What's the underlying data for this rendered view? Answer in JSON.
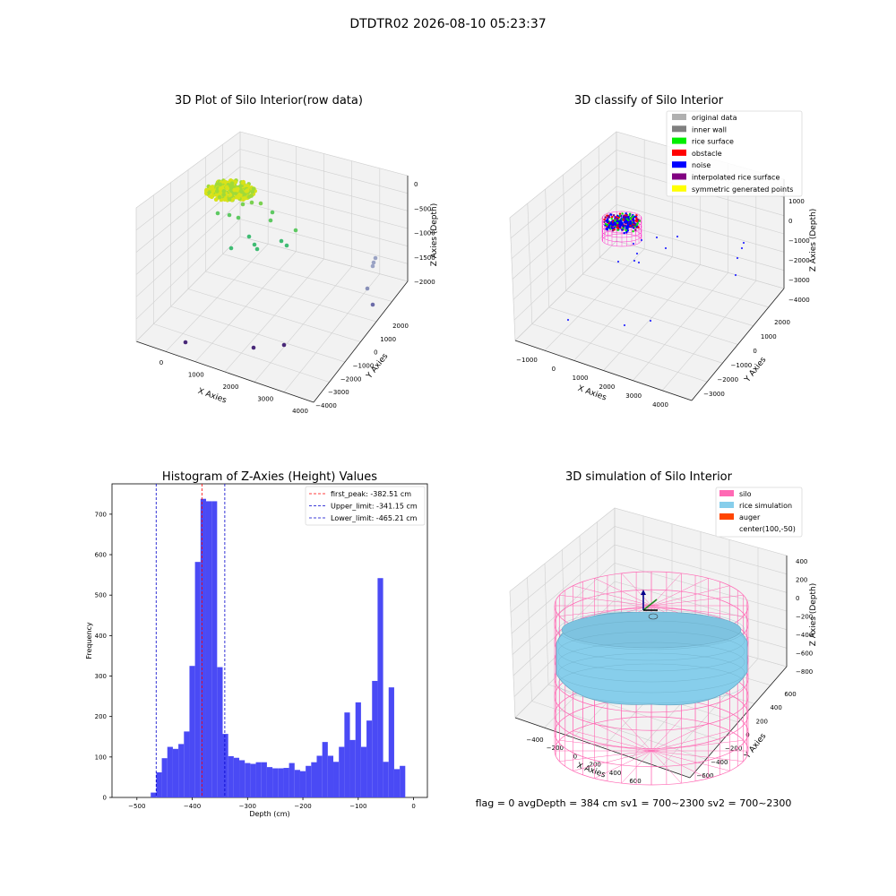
{
  "figure": {
    "suptitle": "DTDTR02 2026-08-10 05:23:37",
    "status_line": "flag = 0     avgDepth = 384 cm  sv1 = 700~2300  sv2 = 700~2300"
  },
  "colors": {
    "axis_pane": "#f2f2f2",
    "grid": "#d0d0d0",
    "hist_bar": "#4a4af5",
    "first_peak": "#ff0000",
    "limit_line": "#0000cc",
    "silo": "#ff69b4",
    "rice_simulation": "#87ceeb",
    "auger": "#ff4500"
  },
  "chart_data": [
    {
      "type": "scatter",
      "title": "3D Plot of Silo Interior(row data)",
      "xlabel": "X Axies",
      "ylabel": "Y Axies",
      "zlabel": "Z Axies (Depth)",
      "x_ticks": [
        "0",
        "1000",
        "2000",
        "3000",
        "4000"
      ],
      "y_ticks": [
        "−4000",
        "−3000",
        "−2000",
        "−1000",
        "0",
        "1000",
        "2000"
      ],
      "z_ticks": [
        "0",
        "−500",
        "−1000",
        "−1500",
        "−2000"
      ],
      "colormap": "viridis"
    },
    {
      "type": "scatter",
      "title": "3D classify of Silo Interior",
      "xlabel": "X Axies",
      "ylabel": "Y Axies",
      "zlabel": "Z Axies (Depth)",
      "x_ticks": [
        "−1000",
        "0",
        "1000",
        "2000",
        "3000",
        "4000"
      ],
      "y_ticks": [
        "−3000",
        "−2000",
        "−1000",
        "0",
        "1000",
        "2000"
      ],
      "z_ticks": [
        "1000",
        "0",
        "−1000",
        "−2000",
        "−3000",
        "−4000"
      ],
      "legend_position": "top-right",
      "legend": [
        {
          "label": "original data",
          "color": "#b0b0b0"
        },
        {
          "label": "inner wall",
          "color": "#808080"
        },
        {
          "label": "rice surface",
          "color": "#00ee00"
        },
        {
          "label": "obstacle",
          "color": "#ff0000"
        },
        {
          "label": "noise",
          "color": "#0000ff"
        },
        {
          "label": "interpolated rice surface",
          "color": "#800080"
        },
        {
          "label": "symmetric generated points",
          "color": "#ffff00"
        }
      ]
    },
    {
      "type": "bar",
      "title": "Histogram of Z-Axies (Height) Values",
      "xlabel": "Depth (cm)",
      "ylabel": "Frequency",
      "xlim": [
        -545,
        25
      ],
      "ylim": [
        0,
        775
      ],
      "x_ticks": [
        -500,
        -400,
        -300,
        -200,
        -100,
        0
      ],
      "x_tick_labels": [
        "−500",
        "−400",
        "−300",
        "−200",
        "−100",
        "0"
      ],
      "y_ticks": [
        0,
        100,
        200,
        300,
        400,
        500,
        600,
        700
      ],
      "bin_width": 10,
      "bin_start": -475,
      "values": [
        12,
        62,
        97,
        125,
        120,
        132,
        163,
        325,
        582,
        738,
        732,
        732,
        322,
        157,
        102,
        98,
        92,
        85,
        83,
        87,
        87,
        75,
        72,
        72,
        73,
        85,
        68,
        65,
        78,
        87,
        103,
        137,
        103,
        88,
        125,
        210,
        142,
        235,
        125,
        190,
        288,
        542,
        88,
        272,
        70,
        78
      ],
      "legend_position": "top-right",
      "vlines": [
        {
          "name": "first_peak",
          "label": "first_peak: -382.51 cm",
          "x": -382.51,
          "color": "#ff0000"
        },
        {
          "name": "upper_limit",
          "label": "Upper_limit: -341.15 cm",
          "x": -341.15,
          "color": "#0000cc"
        },
        {
          "name": "lower_limit",
          "label": "Lower_limit: -465.21 cm",
          "x": -465.21,
          "color": "#0000cc"
        }
      ]
    },
    {
      "type": "scatter",
      "title": "3D simulation of Silo Interior",
      "xlabel": "X Axies",
      "ylabel": "Y Axies",
      "zlabel": "Z Axies (Depth)",
      "x_ticks": [
        "−400",
        "−200",
        "0",
        "200",
        "400",
        "600"
      ],
      "y_ticks": [
        "−600",
        "−400",
        "−200",
        "0",
        "200",
        "400",
        "600"
      ],
      "z_ticks": [
        "400",
        "200",
        "0",
        "−200",
        "−400",
        "−600",
        "−800"
      ],
      "legend_position": "top-right",
      "legend": [
        {
          "label": "silo",
          "color": "#ff69b4"
        },
        {
          "label": "rice simulation",
          "color": "#87ceeb"
        },
        {
          "label": "auger",
          "color": "#ff4500"
        },
        {
          "label": "center(100,-50)",
          "color": ""
        }
      ]
    }
  ]
}
